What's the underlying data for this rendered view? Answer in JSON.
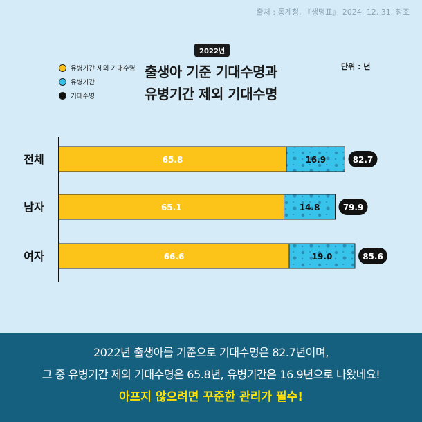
{
  "source": "출처 : 통계청, 『생명표』 2024. 12. 31. 참조",
  "badge": "2022년",
  "title_line1": "출생아 기준 기대수명과",
  "title_line2": "유병기간 제외 기대수명",
  "unit": "단위 : 년",
  "legend": [
    {
      "label": "유병기간 제외 기대수명",
      "color": "#fcc419"
    },
    {
      "label": "유병기간",
      "color": "#38c3ea"
    },
    {
      "label": "기대수명",
      "color": "#111111"
    }
  ],
  "chart_data": {
    "type": "bar",
    "orientation": "horizontal",
    "stacked": true,
    "categories": [
      "전체",
      "남자",
      "여자"
    ],
    "series": [
      {
        "name": "유병기간 제외 기대수명",
        "values": [
          65.8,
          65.1,
          66.6
        ],
        "color": "#fcc419"
      },
      {
        "name": "유병기간",
        "values": [
          16.9,
          14.8,
          19.0
        ],
        "color": "#38c3ea"
      }
    ],
    "totals": {
      "name": "기대수명",
      "values": [
        82.7,
        79.9,
        85.6
      ]
    },
    "xlim": [
      0,
      100
    ],
    "legend_position": "top-left",
    "grid": false
  },
  "footer": {
    "line1": "2022년 출생아를 기준으로 기대수명은 82.7년이며,",
    "line2": "그 중 유병기간 제외 기대수명은  65.8년, 유병기간은 16.9년으로 나왔네요!",
    "line3": "아프지 않으려면 꾸준한 관리가 필수!"
  }
}
